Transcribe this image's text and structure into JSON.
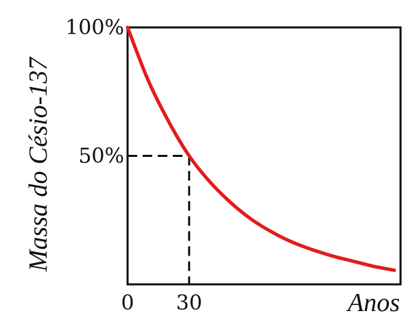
{
  "chart_data": {
    "type": "line",
    "xlabel": "Anos",
    "ylabel": "Massa do Césio-137",
    "x_ticks": [
      "0",
      "30"
    ],
    "y_ticks": [
      "50%",
      "100%"
    ],
    "xlim": [
      0,
      133
    ],
    "ylim": [
      0,
      100
    ],
    "series": [
      {
        "color": "#e31b1b",
        "x": [
          0,
          10,
          20,
          30,
          40,
          50,
          60,
          70,
          80,
          90,
          100,
          110,
          120,
          130
        ],
        "y": [
          100,
          79.5,
          63.4,
          50,
          40.0,
          32.0,
          25.5,
          20.5,
          16.5,
          13.5,
          11.0,
          9.0,
          7.0,
          5.5
        ]
      }
    ],
    "reference": {
      "x": 30,
      "y": 50,
      "style": "dashed"
    },
    "grid": false,
    "legend": "none"
  }
}
